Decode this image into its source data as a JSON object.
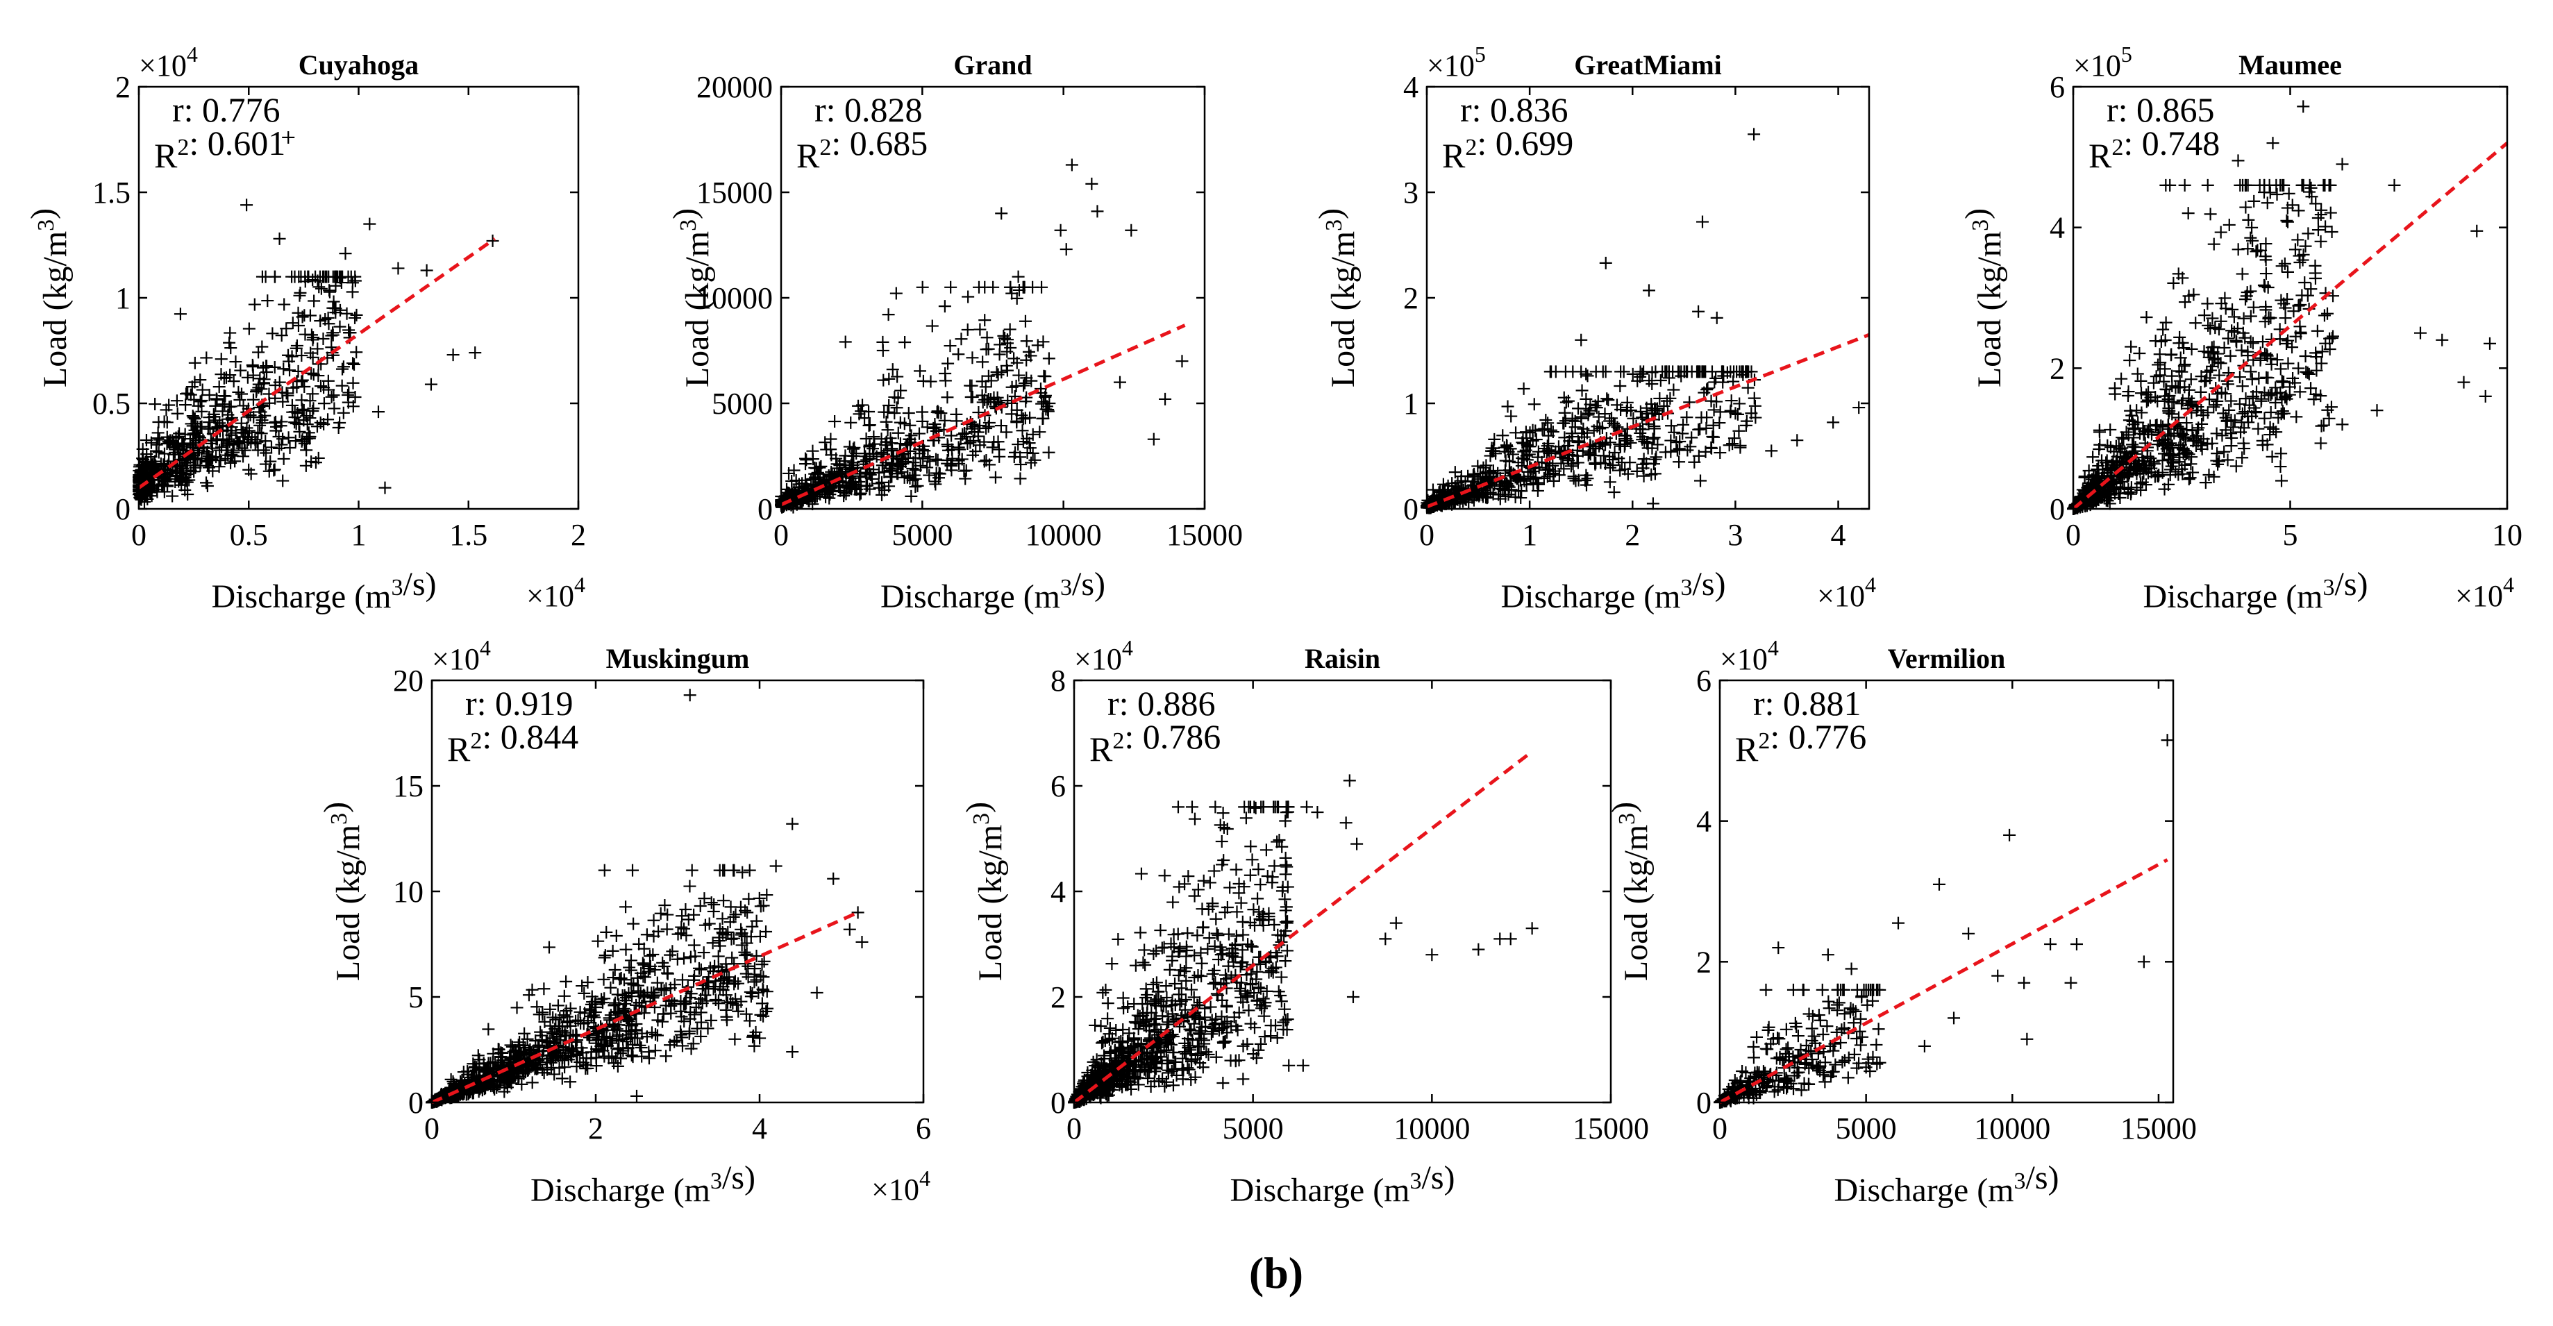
{
  "figure": {
    "label": "(b)",
    "label_bold": "b"
  },
  "chart_data": [
    {
      "type": "scatter",
      "title": "Cuyahoga",
      "xlabel": "Discharge (m³/s)",
      "ylabel": "Load (kg/m³)",
      "xlim": [
        0,
        20000
      ],
      "ylim": [
        0,
        20000
      ],
      "xticks": [
        0,
        0.5,
        1,
        1.5,
        2
      ],
      "yticks": [
        0,
        0.5,
        1,
        1.5,
        2
      ],
      "x_multiplier": "×10^4",
      "y_multiplier": "×10^4",
      "r_label": "r: 0.776",
      "r2_label": "R²: 0.601",
      "fit_line": {
        "x": [
          0,
          16200
        ],
        "y": [
          1000,
          12800
        ]
      },
      "points": {
        "n": 700,
        "xmax": 10000,
        "ymax": 11000,
        "slope": 0.728,
        "intercept": 1000,
        "spread": 0.45,
        "outliers": [
          [
            6800,
            17600
          ],
          [
            4900,
            14400
          ],
          [
            6400,
            12800
          ],
          [
            9400,
            12100
          ],
          [
            10500,
            13500
          ],
          [
            11800,
            11400
          ],
          [
            13100,
            11300
          ],
          [
            14300,
            7300
          ],
          [
            15300,
            7400
          ],
          [
            16100,
            12700
          ],
          [
            13300,
            5900
          ],
          [
            10900,
            4600
          ],
          [
            11200,
            1000
          ],
          [
            8800,
            7400
          ],
          [
            7500,
            4200
          ]
        ]
      }
    },
    {
      "type": "scatter",
      "title": "Grand",
      "xlabel": "Discharge (m³/s)",
      "ylabel": "Load (kg/m³)",
      "xlim": [
        0,
        15000
      ],
      "ylim": [
        0,
        20000
      ],
      "xticks": [
        0,
        5000,
        10000,
        15000
      ],
      "yticks": [
        0,
        5000,
        10000,
        15000,
        20000
      ],
      "x_multiplier": "",
      "y_multiplier": "",
      "r_label": "r: 0.828",
      "r2_label": "R²: 0.685",
      "fit_line": {
        "x": [
          0,
          14300
        ],
        "y": [
          200,
          8700
        ]
      },
      "points": {
        "n": 700,
        "xmax": 9500,
        "ymax": 10500,
        "slope": 0.594,
        "intercept": 200,
        "spread": 0.5,
        "outliers": [
          [
            10300,
            16300
          ],
          [
            11000,
            15400
          ],
          [
            11200,
            14100
          ],
          [
            12400,
            13200
          ],
          [
            9900,
            13200
          ],
          [
            10100,
            12300
          ],
          [
            7800,
            14000
          ],
          [
            8400,
            11000
          ],
          [
            13600,
            5200
          ],
          [
            13200,
            3300
          ],
          [
            14200,
            7000
          ],
          [
            12000,
            6000
          ],
          [
            9500,
            5000
          ],
          [
            5800,
            9600
          ],
          [
            3600,
            7900
          ]
        ]
      }
    },
    {
      "type": "scatter",
      "title": "GreatMiami",
      "xlabel": "Discharge (m³/s)",
      "ylabel": "Load (kg/m³)",
      "xlim": [
        0,
        43000
      ],
      "ylim": [
        0,
        400000
      ],
      "xticks": [
        0,
        1,
        2,
        3,
        4
      ],
      "yticks": [
        0,
        1,
        2,
        3,
        4
      ],
      "x_multiplier": "×10^4",
      "y_multiplier": "×10^5",
      "r_label": "r: 0.836",
      "r2_label": "R²: 0.699",
      "fit_line": {
        "x": [
          0,
          43000
        ],
        "y": [
          2000,
          165000
        ]
      },
      "points": {
        "n": 750,
        "xmax": 32000,
        "ymax": 130000,
        "slope": 3.79,
        "intercept": 2000,
        "spread": 0.5,
        "outliers": [
          [
            31800,
            355000
          ],
          [
            26800,
            272000
          ],
          [
            17400,
            233000
          ],
          [
            21600,
            207000
          ],
          [
            26400,
            187000
          ],
          [
            28200,
            181000
          ],
          [
            36000,
            65000
          ],
          [
            39500,
            82000
          ],
          [
            42000,
            96000
          ],
          [
            33500,
            55000
          ],
          [
            22000,
            5000
          ],
          [
            15000,
            160000
          ],
          [
            31000,
            130000
          ]
        ]
      }
    },
    {
      "type": "scatter",
      "title": "Maumee",
      "xlabel": "Discharge (m³/s)",
      "ylabel": "Load (kg/m³)",
      "xlim": [
        0,
        100000
      ],
      "ylim": [
        0,
        600000
      ],
      "xticks": [
        0,
        5,
        10
      ],
      "yticks": [
        0,
        2,
        4,
        6
      ],
      "x_multiplier": "×10^4",
      "y_multiplier": "×10^5",
      "r_label": "r: 0.865",
      "r2_label": "R²: 0.748",
      "fit_line": {
        "x": [
          0,
          100000
        ],
        "y": [
          0,
          520000
        ]
      },
      "points": {
        "n": 900,
        "xmax": 60000,
        "ymax": 460000,
        "slope": 5.2,
        "intercept": 0,
        "spread": 0.55,
        "outliers": [
          [
            53000,
            572000
          ],
          [
            46000,
            520000
          ],
          [
            38000,
            495000
          ],
          [
            44000,
            450000
          ],
          [
            62000,
            490000
          ],
          [
            74000,
            460000
          ],
          [
            80000,
            250000
          ],
          [
            85000,
            240000
          ],
          [
            90000,
            180000
          ],
          [
            95000,
            160000
          ],
          [
            96000,
            235000
          ],
          [
            93000,
            395000
          ],
          [
            48000,
            40000
          ],
          [
            70000,
            140000
          ],
          [
            62000,
            120000
          ]
        ]
      }
    },
    {
      "type": "scatter",
      "title": "Muskingum",
      "xlabel": "Discharge (m³/s)",
      "ylabel": "Load (kg/m³)",
      "xlim": [
        0,
        60000
      ],
      "ylim": [
        0,
        200000
      ],
      "xticks": [
        0,
        2,
        4,
        6
      ],
      "yticks": [
        0,
        5,
        10,
        15,
        20
      ],
      "x_multiplier": "×10^4",
      "y_multiplier": "×10^4",
      "r_label": "r: 0.919",
      "r2_label": "R²: 0.844",
      "fit_line": {
        "x": [
          0,
          52000
        ],
        "y": [
          0,
          90000
        ]
      },
      "points": {
        "n": 1100,
        "xmax": 41000,
        "ymax": 110000,
        "slope": 1.73,
        "intercept": 0,
        "spread": 0.35,
        "outliers": [
          [
            31500,
            193000
          ],
          [
            44000,
            132000
          ],
          [
            42000,
            112000
          ],
          [
            49000,
            106000
          ],
          [
            52000,
            90000
          ],
          [
            47000,
            52000
          ],
          [
            44000,
            24000
          ],
          [
            51000,
            82000
          ],
          [
            52500,
            76000
          ],
          [
            25000,
            3000
          ]
        ]
      }
    },
    {
      "type": "scatter",
      "title": "Raisin",
      "xlabel": "Discharge (m³/s)",
      "ylabel": "Load (kg/m³)",
      "xlim": [
        0,
        15000
      ],
      "ylim": [
        0,
        80000
      ],
      "xticks": [
        0,
        5000,
        10000,
        15000
      ],
      "yticks": [
        0,
        2,
        4,
        6,
        8
      ],
      "x_multiplier": "",
      "y_multiplier": "×10^4",
      "r_label": "r: 0.886",
      "r2_label": "R²: 0.786",
      "fit_line": {
        "x": [
          0,
          12800
        ],
        "y": [
          0,
          66500
        ]
      },
      "points": {
        "n": 1000,
        "xmax": 6000,
        "ymax": 56000,
        "slope": 5.2,
        "intercept": 0,
        "spread": 0.55,
        "outliers": [
          [
            7700,
            61000
          ],
          [
            7600,
            53000
          ],
          [
            6500,
            56000
          ],
          [
            6800,
            55000
          ],
          [
            9000,
            34000
          ],
          [
            8700,
            31000
          ],
          [
            10000,
            28000
          ],
          [
            11300,
            29000
          ],
          [
            11900,
            31000
          ],
          [
            12200,
            31000
          ],
          [
            12800,
            33000
          ],
          [
            6000,
            7000
          ],
          [
            6400,
            7000
          ],
          [
            7800,
            20000
          ],
          [
            7900,
            49000
          ]
        ]
      }
    },
    {
      "type": "scatter",
      "title": "Vermilion",
      "xlabel": "Discharge (m³/s)",
      "ylabel": "Load (kg/m³)",
      "xlim": [
        0,
        15500
      ],
      "ylim": [
        0,
        60000
      ],
      "xticks": [
        0,
        5000,
        10000,
        15000
      ],
      "yticks": [
        0,
        2,
        4,
        6
      ],
      "x_multiplier": "",
      "y_multiplier": "×10^4",
      "r_label": "r: 0.881",
      "r2_label": "R²: 0.776",
      "fit_line": {
        "x": [
          0,
          15300
        ],
        "y": [
          0,
          34500
        ]
      },
      "points": {
        "n": 300,
        "xmax": 5500,
        "ymax": 16000,
        "slope": 2.25,
        "intercept": 0,
        "spread": 0.55,
        "outliers": [
          [
            15300,
            51500
          ],
          [
            9900,
            38000
          ],
          [
            7500,
            31000
          ],
          [
            8500,
            24000
          ],
          [
            2000,
            22000
          ],
          [
            3700,
            21000
          ],
          [
            4500,
            19000
          ],
          [
            6100,
            25500
          ],
          [
            9500,
            18000
          ],
          [
            10400,
            17000
          ],
          [
            11300,
            22500
          ],
          [
            12200,
            22500
          ],
          [
            14500,
            20000
          ],
          [
            10500,
            9000
          ],
          [
            8000,
            12000
          ],
          [
            12000,
            17000
          ],
          [
            5000,
            5000
          ],
          [
            7000,
            8000
          ]
        ]
      }
    }
  ]
}
